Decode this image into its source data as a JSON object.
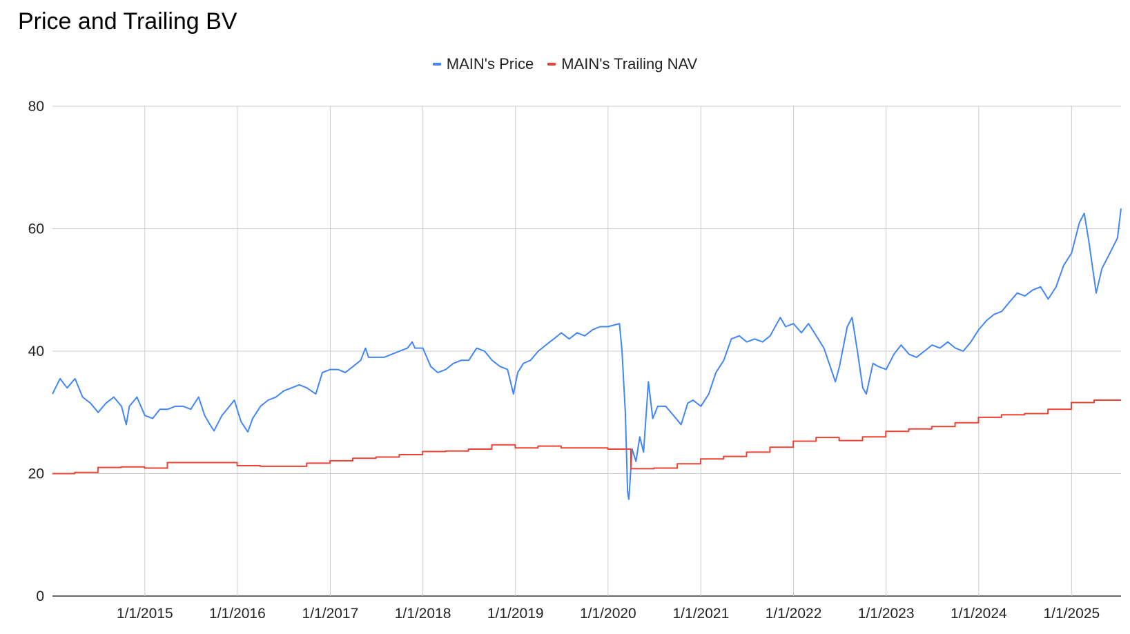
{
  "chart_data": {
    "type": "line",
    "title": "Price and Trailing BV",
    "xlabel": "",
    "ylabel": "",
    "ylim": [
      0,
      80
    ],
    "y_ticks": [
      "0",
      "20",
      "40",
      "60",
      "80"
    ],
    "x_range": [
      "2014-01-02",
      "2025-07-15"
    ],
    "x_ticks": [
      {
        "date": "2015-01-01",
        "label": "1/1/2015"
      },
      {
        "date": "2016-01-01",
        "label": "1/1/2016"
      },
      {
        "date": "2017-01-01",
        "label": "1/1/2017"
      },
      {
        "date": "2018-01-01",
        "label": "1/1/2018"
      },
      {
        "date": "2019-01-01",
        "label": "1/1/2019"
      },
      {
        "date": "2020-01-01",
        "label": "1/1/2020"
      },
      {
        "date": "2021-01-01",
        "label": "1/1/2021"
      },
      {
        "date": "2022-01-01",
        "label": "1/1/2022"
      },
      {
        "date": "2023-01-01",
        "label": "1/1/2023"
      },
      {
        "date": "2024-01-01",
        "label": "1/1/2024"
      },
      {
        "date": "2025-01-01",
        "label": "1/1/2025"
      }
    ],
    "grid": true,
    "legend_position": "top",
    "series": [
      {
        "name": "MAIN's Price",
        "color": "#4285f4",
        "points": [
          [
            "2014-01-02",
            33.0
          ],
          [
            "2014-02-01",
            35.5
          ],
          [
            "2014-03-01",
            34.0
          ],
          [
            "2014-04-01",
            35.5
          ],
          [
            "2014-05-01",
            32.5
          ],
          [
            "2014-06-01",
            31.5
          ],
          [
            "2014-07-01",
            30.0
          ],
          [
            "2014-08-01",
            31.5
          ],
          [
            "2014-09-01",
            32.5
          ],
          [
            "2014-10-01",
            31.0
          ],
          [
            "2014-10-20",
            28.0
          ],
          [
            "2014-11-01",
            31.0
          ],
          [
            "2014-12-01",
            32.5
          ],
          [
            "2015-01-01",
            29.5
          ],
          [
            "2015-02-01",
            29.0
          ],
          [
            "2015-03-01",
            30.5
          ],
          [
            "2015-04-01",
            30.5
          ],
          [
            "2015-05-01",
            31.0
          ],
          [
            "2015-06-01",
            31.0
          ],
          [
            "2015-07-01",
            30.5
          ],
          [
            "2015-08-01",
            32.5
          ],
          [
            "2015-08-25",
            29.5
          ],
          [
            "2015-09-15",
            28.0
          ],
          [
            "2015-10-01",
            27.0
          ],
          [
            "2015-11-01",
            29.5
          ],
          [
            "2015-12-01",
            31.0
          ],
          [
            "2015-12-20",
            32.0
          ],
          [
            "2016-01-15",
            28.5
          ],
          [
            "2016-02-11",
            26.8
          ],
          [
            "2016-03-01",
            29.0
          ],
          [
            "2016-04-01",
            31.0
          ],
          [
            "2016-05-01",
            32.0
          ],
          [
            "2016-06-01",
            32.5
          ],
          [
            "2016-07-01",
            33.5
          ],
          [
            "2016-08-01",
            34.0
          ],
          [
            "2016-09-01",
            34.5
          ],
          [
            "2016-10-01",
            34.0
          ],
          [
            "2016-11-05",
            33.0
          ],
          [
            "2016-12-01",
            36.5
          ],
          [
            "2017-01-01",
            37.0
          ],
          [
            "2017-02-01",
            37.0
          ],
          [
            "2017-03-01",
            36.5
          ],
          [
            "2017-04-01",
            37.5
          ],
          [
            "2017-05-01",
            38.5
          ],
          [
            "2017-05-20",
            40.5
          ],
          [
            "2017-06-01",
            39.0
          ],
          [
            "2017-07-01",
            39.0
          ],
          [
            "2017-08-01",
            39.0
          ],
          [
            "2017-09-01",
            39.5
          ],
          [
            "2017-10-01",
            40.0
          ],
          [
            "2017-11-01",
            40.5
          ],
          [
            "2017-11-20",
            41.5
          ],
          [
            "2017-12-01",
            40.5
          ],
          [
            "2018-01-01",
            40.5
          ],
          [
            "2018-02-01",
            37.5
          ],
          [
            "2018-03-01",
            36.5
          ],
          [
            "2018-04-01",
            37.0
          ],
          [
            "2018-05-01",
            38.0
          ],
          [
            "2018-06-01",
            38.5
          ],
          [
            "2018-07-01",
            38.5
          ],
          [
            "2018-08-01",
            40.5
          ],
          [
            "2018-09-01",
            40.0
          ],
          [
            "2018-10-01",
            38.5
          ],
          [
            "2018-11-01",
            37.5
          ],
          [
            "2018-12-01",
            37.0
          ],
          [
            "2018-12-24",
            33.0
          ],
          [
            "2019-01-10",
            36.5
          ],
          [
            "2019-02-01",
            38.0
          ],
          [
            "2019-03-01",
            38.5
          ],
          [
            "2019-04-01",
            40.0
          ],
          [
            "2019-05-01",
            41.0
          ],
          [
            "2019-06-01",
            42.0
          ],
          [
            "2019-07-01",
            43.0
          ],
          [
            "2019-08-01",
            42.0
          ],
          [
            "2019-09-01",
            43.0
          ],
          [
            "2019-10-01",
            42.5
          ],
          [
            "2019-11-01",
            43.5
          ],
          [
            "2019-12-01",
            44.0
          ],
          [
            "2020-01-01",
            44.0
          ],
          [
            "2020-02-15",
            44.5
          ],
          [
            "2020-02-25",
            40.0
          ],
          [
            "2020-03-09",
            30.0
          ],
          [
            "2020-03-18",
            17.0
          ],
          [
            "2020-03-23",
            15.8
          ],
          [
            "2020-04-05",
            24.0
          ],
          [
            "2020-04-20",
            22.0
          ],
          [
            "2020-05-05",
            26.0
          ],
          [
            "2020-05-20",
            23.5
          ],
          [
            "2020-06-08",
            35.0
          ],
          [
            "2020-06-25",
            29.0
          ],
          [
            "2020-07-15",
            31.0
          ],
          [
            "2020-08-15",
            31.0
          ],
          [
            "2020-09-15",
            29.5
          ],
          [
            "2020-10-15",
            28.0
          ],
          [
            "2020-11-10",
            31.5
          ],
          [
            "2020-12-01",
            32.0
          ],
          [
            "2021-01-01",
            31.0
          ],
          [
            "2021-02-01",
            33.0
          ],
          [
            "2021-03-01",
            36.5
          ],
          [
            "2021-04-01",
            38.5
          ],
          [
            "2021-05-01",
            42.0
          ],
          [
            "2021-06-01",
            42.5
          ],
          [
            "2021-07-01",
            41.5
          ],
          [
            "2021-08-01",
            42.0
          ],
          [
            "2021-09-01",
            41.5
          ],
          [
            "2021-10-01",
            42.5
          ],
          [
            "2021-11-10",
            45.5
          ],
          [
            "2021-12-01",
            44.0
          ],
          [
            "2022-01-01",
            44.5
          ],
          [
            "2022-02-01",
            43.0
          ],
          [
            "2022-03-01",
            44.5
          ],
          [
            "2022-04-01",
            42.5
          ],
          [
            "2022-05-01",
            40.5
          ],
          [
            "2022-06-15",
            35.0
          ],
          [
            "2022-07-01",
            37.5
          ],
          [
            "2022-08-01",
            44.0
          ],
          [
            "2022-08-20",
            45.5
          ],
          [
            "2022-09-10",
            40.0
          ],
          [
            "2022-10-01",
            34.0
          ],
          [
            "2022-10-15",
            33.0
          ],
          [
            "2022-11-10",
            38.0
          ],
          [
            "2022-12-01",
            37.5
          ],
          [
            "2023-01-01",
            37.0
          ],
          [
            "2023-02-01",
            39.5
          ],
          [
            "2023-03-01",
            41.0
          ],
          [
            "2023-04-01",
            39.5
          ],
          [
            "2023-05-01",
            39.0
          ],
          [
            "2023-06-01",
            40.0
          ],
          [
            "2023-07-01",
            41.0
          ],
          [
            "2023-08-01",
            40.5
          ],
          [
            "2023-09-01",
            41.5
          ],
          [
            "2023-10-01",
            40.5
          ],
          [
            "2023-11-01",
            40.0
          ],
          [
            "2023-12-01",
            41.5
          ],
          [
            "2024-01-01",
            43.5
          ],
          [
            "2024-02-01",
            45.0
          ],
          [
            "2024-03-01",
            46.0
          ],
          [
            "2024-04-01",
            46.5
          ],
          [
            "2024-05-01",
            48.0
          ],
          [
            "2024-06-01",
            49.5
          ],
          [
            "2024-07-01",
            49.0
          ],
          [
            "2024-08-01",
            50.0
          ],
          [
            "2024-09-01",
            50.5
          ],
          [
            "2024-10-01",
            48.5
          ],
          [
            "2024-11-01",
            50.5
          ],
          [
            "2024-12-01",
            54.0
          ],
          [
            "2025-01-01",
            56.0
          ],
          [
            "2025-02-01",
            61.0
          ],
          [
            "2025-02-20",
            62.5
          ],
          [
            "2025-03-10",
            58.0
          ],
          [
            "2025-04-08",
            49.5
          ],
          [
            "2025-05-01",
            53.5
          ],
          [
            "2025-06-01",
            56.0
          ],
          [
            "2025-07-01",
            58.5
          ],
          [
            "2025-07-15",
            63.3
          ]
        ]
      },
      {
        "name": "MAIN's Trailing NAV",
        "color": "#ea4335",
        "points": [
          [
            "2014-01-02",
            20.0
          ],
          [
            "2014-03-31",
            20.2
          ],
          [
            "2014-06-30",
            21.0
          ],
          [
            "2014-09-30",
            21.1
          ],
          [
            "2014-12-31",
            20.9
          ],
          [
            "2015-03-31",
            21.8
          ],
          [
            "2015-06-30",
            21.8
          ],
          [
            "2015-09-30",
            21.8
          ],
          [
            "2015-12-31",
            21.3
          ],
          [
            "2016-03-31",
            21.2
          ],
          [
            "2016-06-30",
            21.2
          ],
          [
            "2016-09-30",
            21.7
          ],
          [
            "2016-12-31",
            22.1
          ],
          [
            "2017-03-31",
            22.5
          ],
          [
            "2017-06-30",
            22.7
          ],
          [
            "2017-09-30",
            23.1
          ],
          [
            "2017-12-31",
            23.6
          ],
          [
            "2018-03-31",
            23.7
          ],
          [
            "2018-06-30",
            24.0
          ],
          [
            "2018-09-30",
            24.7
          ],
          [
            "2018-12-31",
            24.2
          ],
          [
            "2019-03-31",
            24.5
          ],
          [
            "2019-06-30",
            24.2
          ],
          [
            "2019-09-30",
            24.2
          ],
          [
            "2019-12-31",
            24.0
          ],
          [
            "2020-03-31",
            20.8
          ],
          [
            "2020-06-30",
            20.9
          ],
          [
            "2020-09-30",
            21.6
          ],
          [
            "2020-12-31",
            22.4
          ],
          [
            "2021-03-31",
            22.8
          ],
          [
            "2021-06-30",
            23.5
          ],
          [
            "2021-09-30",
            24.3
          ],
          [
            "2021-12-31",
            25.3
          ],
          [
            "2022-03-31",
            25.9
          ],
          [
            "2022-06-30",
            25.4
          ],
          [
            "2022-09-30",
            26.0
          ],
          [
            "2022-12-31",
            26.9
          ],
          [
            "2023-03-31",
            27.3
          ],
          [
            "2023-06-30",
            27.7
          ],
          [
            "2023-09-30",
            28.3
          ],
          [
            "2023-12-31",
            29.2
          ],
          [
            "2024-03-31",
            29.6
          ],
          [
            "2024-06-30",
            29.8
          ],
          [
            "2024-09-30",
            30.5
          ],
          [
            "2024-12-31",
            31.6
          ],
          [
            "2025-03-31",
            32.0
          ],
          [
            "2025-07-15",
            32.0
          ]
        ]
      }
    ]
  }
}
